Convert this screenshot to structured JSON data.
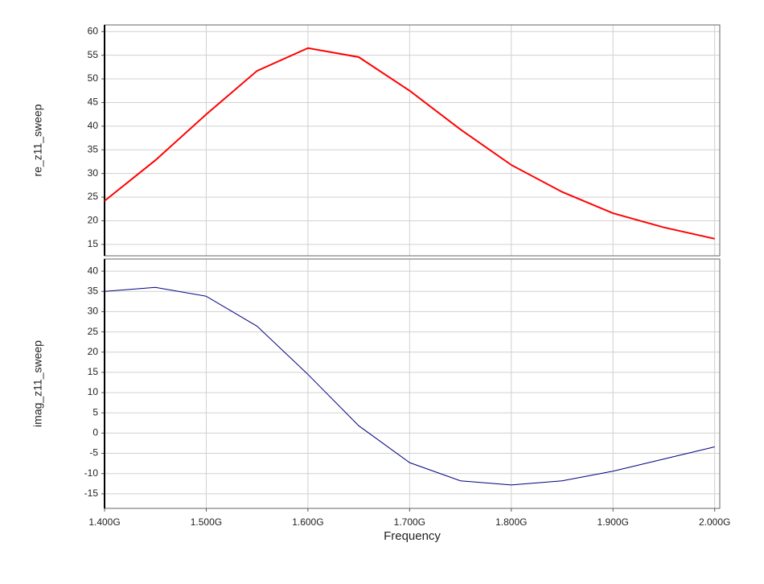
{
  "chart_data": [
    {
      "type": "line",
      "ylabel": "re_z11_sweep",
      "x": [
        1.4,
        1.45,
        1.5,
        1.55,
        1.6,
        1.65,
        1.7,
        1.75,
        1.8,
        1.85,
        1.9,
        1.95,
        2.0
      ],
      "series": [
        {
          "name": "re_z11_sweep",
          "color": "#ff0000",
          "values": [
            24.2,
            32.8,
            42.5,
            51.7,
            56.5,
            54.6,
            47.5,
            39.3,
            31.8,
            26.1,
            21.6,
            18.6,
            16.2
          ]
        }
      ],
      "xlim": [
        1.4,
        2.005
      ],
      "ylim": [
        12.6,
        61.4
      ],
      "yticks": [
        15,
        20,
        25,
        30,
        35,
        40,
        45,
        50,
        55,
        60
      ],
      "grid": true
    },
    {
      "type": "line",
      "ylabel": "imag_z11_sweep",
      "xlabel": "Frequency",
      "x": [
        1.4,
        1.45,
        1.5,
        1.55,
        1.6,
        1.65,
        1.7,
        1.75,
        1.8,
        1.85,
        1.9,
        1.95,
        2.0
      ],
      "series": [
        {
          "name": "imag_z11_sweep",
          "color": "#000080",
          "values": [
            35,
            36,
            33.8,
            26.4,
            14.5,
            1.8,
            -7.3,
            -11.8,
            -12.8,
            -11.8,
            -9.4,
            -6.4,
            -3.4
          ]
        }
      ],
      "xlim": [
        1.4,
        2.005
      ],
      "ylim": [
        -18.6,
        43
      ],
      "xticks": [
        {
          "value": 1.4,
          "label": "1.400G"
        },
        {
          "value": 1.5,
          "label": "1.500G"
        },
        {
          "value": 1.6,
          "label": "1.600G"
        },
        {
          "value": 1.7,
          "label": "1.700G"
        },
        {
          "value": 1.8,
          "label": "1.800G"
        },
        {
          "value": 1.9,
          "label": "1.900G"
        },
        {
          "value": 2.0,
          "label": "2.000G"
        }
      ],
      "yticks": [
        -15,
        -10,
        -5,
        0,
        5,
        10,
        15,
        20,
        25,
        30,
        35,
        40
      ],
      "grid": true
    }
  ]
}
